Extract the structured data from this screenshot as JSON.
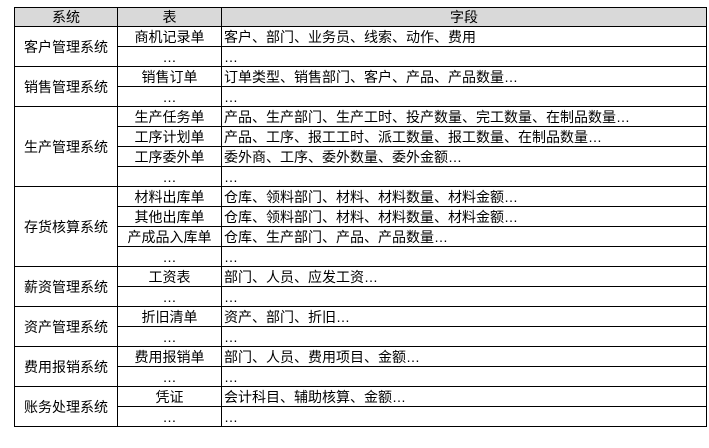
{
  "page": {
    "background": "#ffffff"
  },
  "table": {
    "border_color": "#000000",
    "header_bg": "#d9d9d9",
    "text_color": "#000000",
    "headers": [
      "系统",
      "表",
      "字段"
    ],
    "groups": [
      {
        "system": "客户管理系统",
        "rows": [
          {
            "table": "商机记录单",
            "fields": "客户、部门、业务员、线索、动作、费用"
          },
          {
            "table": "…",
            "fields": "…"
          }
        ]
      },
      {
        "system": "销售管理系统",
        "rows": [
          {
            "table": "销售订单",
            "fields": "订单类型、销售部门、客户、产品、产品数量…"
          },
          {
            "table": "…",
            "fields": "…"
          }
        ]
      },
      {
        "system": "生产管理系统",
        "rows": [
          {
            "table": "生产任务单",
            "fields": "产品、生产部门、生产工时、投产数量、完工数量、在制品数量…"
          },
          {
            "table": "工序计划单",
            "fields": "产品、工序、报工工时、派工数量、报工数量、在制品数量…"
          },
          {
            "table": "工序委外单",
            "fields": "委外商、工序、委外数量、委外金额…"
          },
          {
            "table": "…",
            "fields": "…"
          }
        ]
      },
      {
        "system": "存货核算系统",
        "rows": [
          {
            "table": "材料出库单",
            "fields": "仓库、领料部门、材料、材料数量、材料金额…"
          },
          {
            "table": "其他出库单",
            "fields": "仓库、领料部门、材料、材料数量、材料金额…"
          },
          {
            "table": "产成品入库单",
            "fields": "仓库、生产部门、产品、产品数量…"
          },
          {
            "table": "…",
            "fields": "…"
          }
        ]
      },
      {
        "system": "薪资管理系统",
        "rows": [
          {
            "table": "工资表",
            "fields": "部门、人员、应发工资…"
          },
          {
            "table": "…",
            "fields": "…"
          }
        ]
      },
      {
        "system": "资产管理系统",
        "rows": [
          {
            "table": "折旧清单",
            "fields": "资产、部门、折旧…"
          },
          {
            "table": "…",
            "fields": "…"
          }
        ]
      },
      {
        "system": "费用报销系统",
        "rows": [
          {
            "table": "费用报销单",
            "fields": "部门、人员、费用项目、金额…"
          },
          {
            "table": "…",
            "fields": "…"
          }
        ]
      },
      {
        "system": "账务处理系统",
        "rows": [
          {
            "table": "凭证",
            "fields": "会计科目、辅助核算、金额…"
          },
          {
            "table": "…",
            "fields": "…"
          }
        ]
      }
    ]
  }
}
